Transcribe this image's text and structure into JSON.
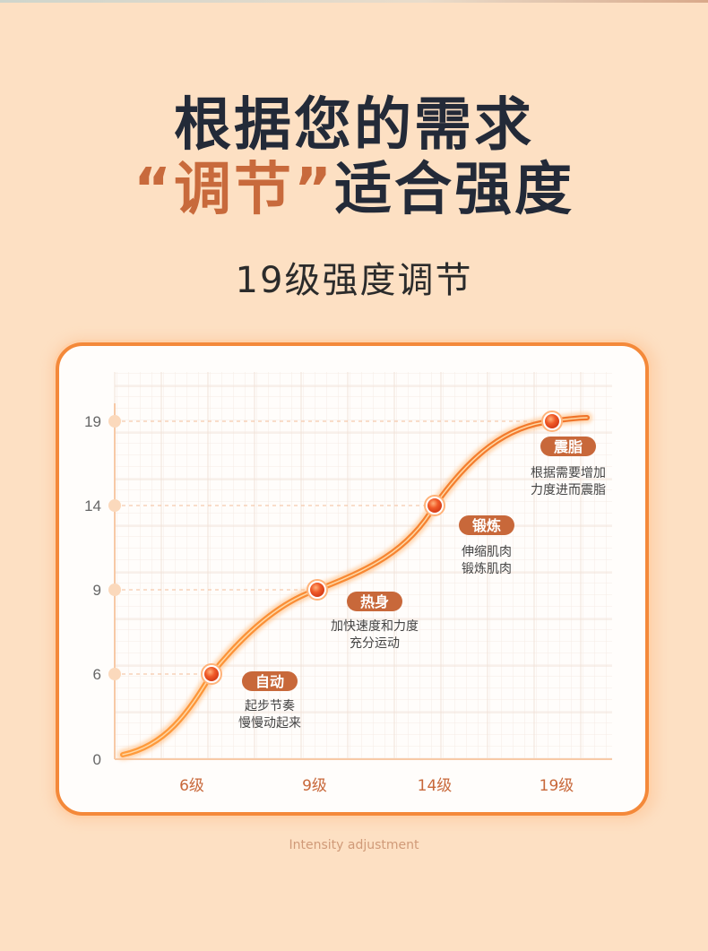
{
  "headline": {
    "line1": "根据您的需求",
    "line2_quote_open": "“",
    "line2_accent": "调节",
    "line2_quote_close": "”",
    "line2_rest": "适合强度"
  },
  "subtitle": "19级强度调节",
  "footer": "Intensity adjustment",
  "colors": {
    "background": "#fde0c3",
    "accent": "#c86a3c",
    "curve": "#f07a2a",
    "tag": "#c8683a",
    "card_border": "#f4893a"
  },
  "chart_data": {
    "type": "line",
    "y_ticks": [
      "0",
      "6",
      "9",
      "14",
      "19"
    ],
    "y_tick_values": [
      0,
      6,
      9,
      14,
      19
    ],
    "x_tick_labels": [
      "6级",
      "9级",
      "14级",
      "19级"
    ],
    "points": [
      {
        "level": 6,
        "value": 6,
        "tag": "自动",
        "desc1": "起步节奏",
        "desc2": "慢慢动起来"
      },
      {
        "level": 9,
        "value": 9,
        "tag": "热身",
        "desc1": "加快速度和力度",
        "desc2": "充分运动"
      },
      {
        "level": 14,
        "value": 14,
        "tag": "锻炼",
        "desc1": "伸缩肌肉",
        "desc2": "锻炼肌肉"
      },
      {
        "level": 19,
        "value": 19,
        "tag": "震脂",
        "desc1": "根据需要增加",
        "desc2": "力度进而震脂"
      }
    ],
    "grid": true
  }
}
